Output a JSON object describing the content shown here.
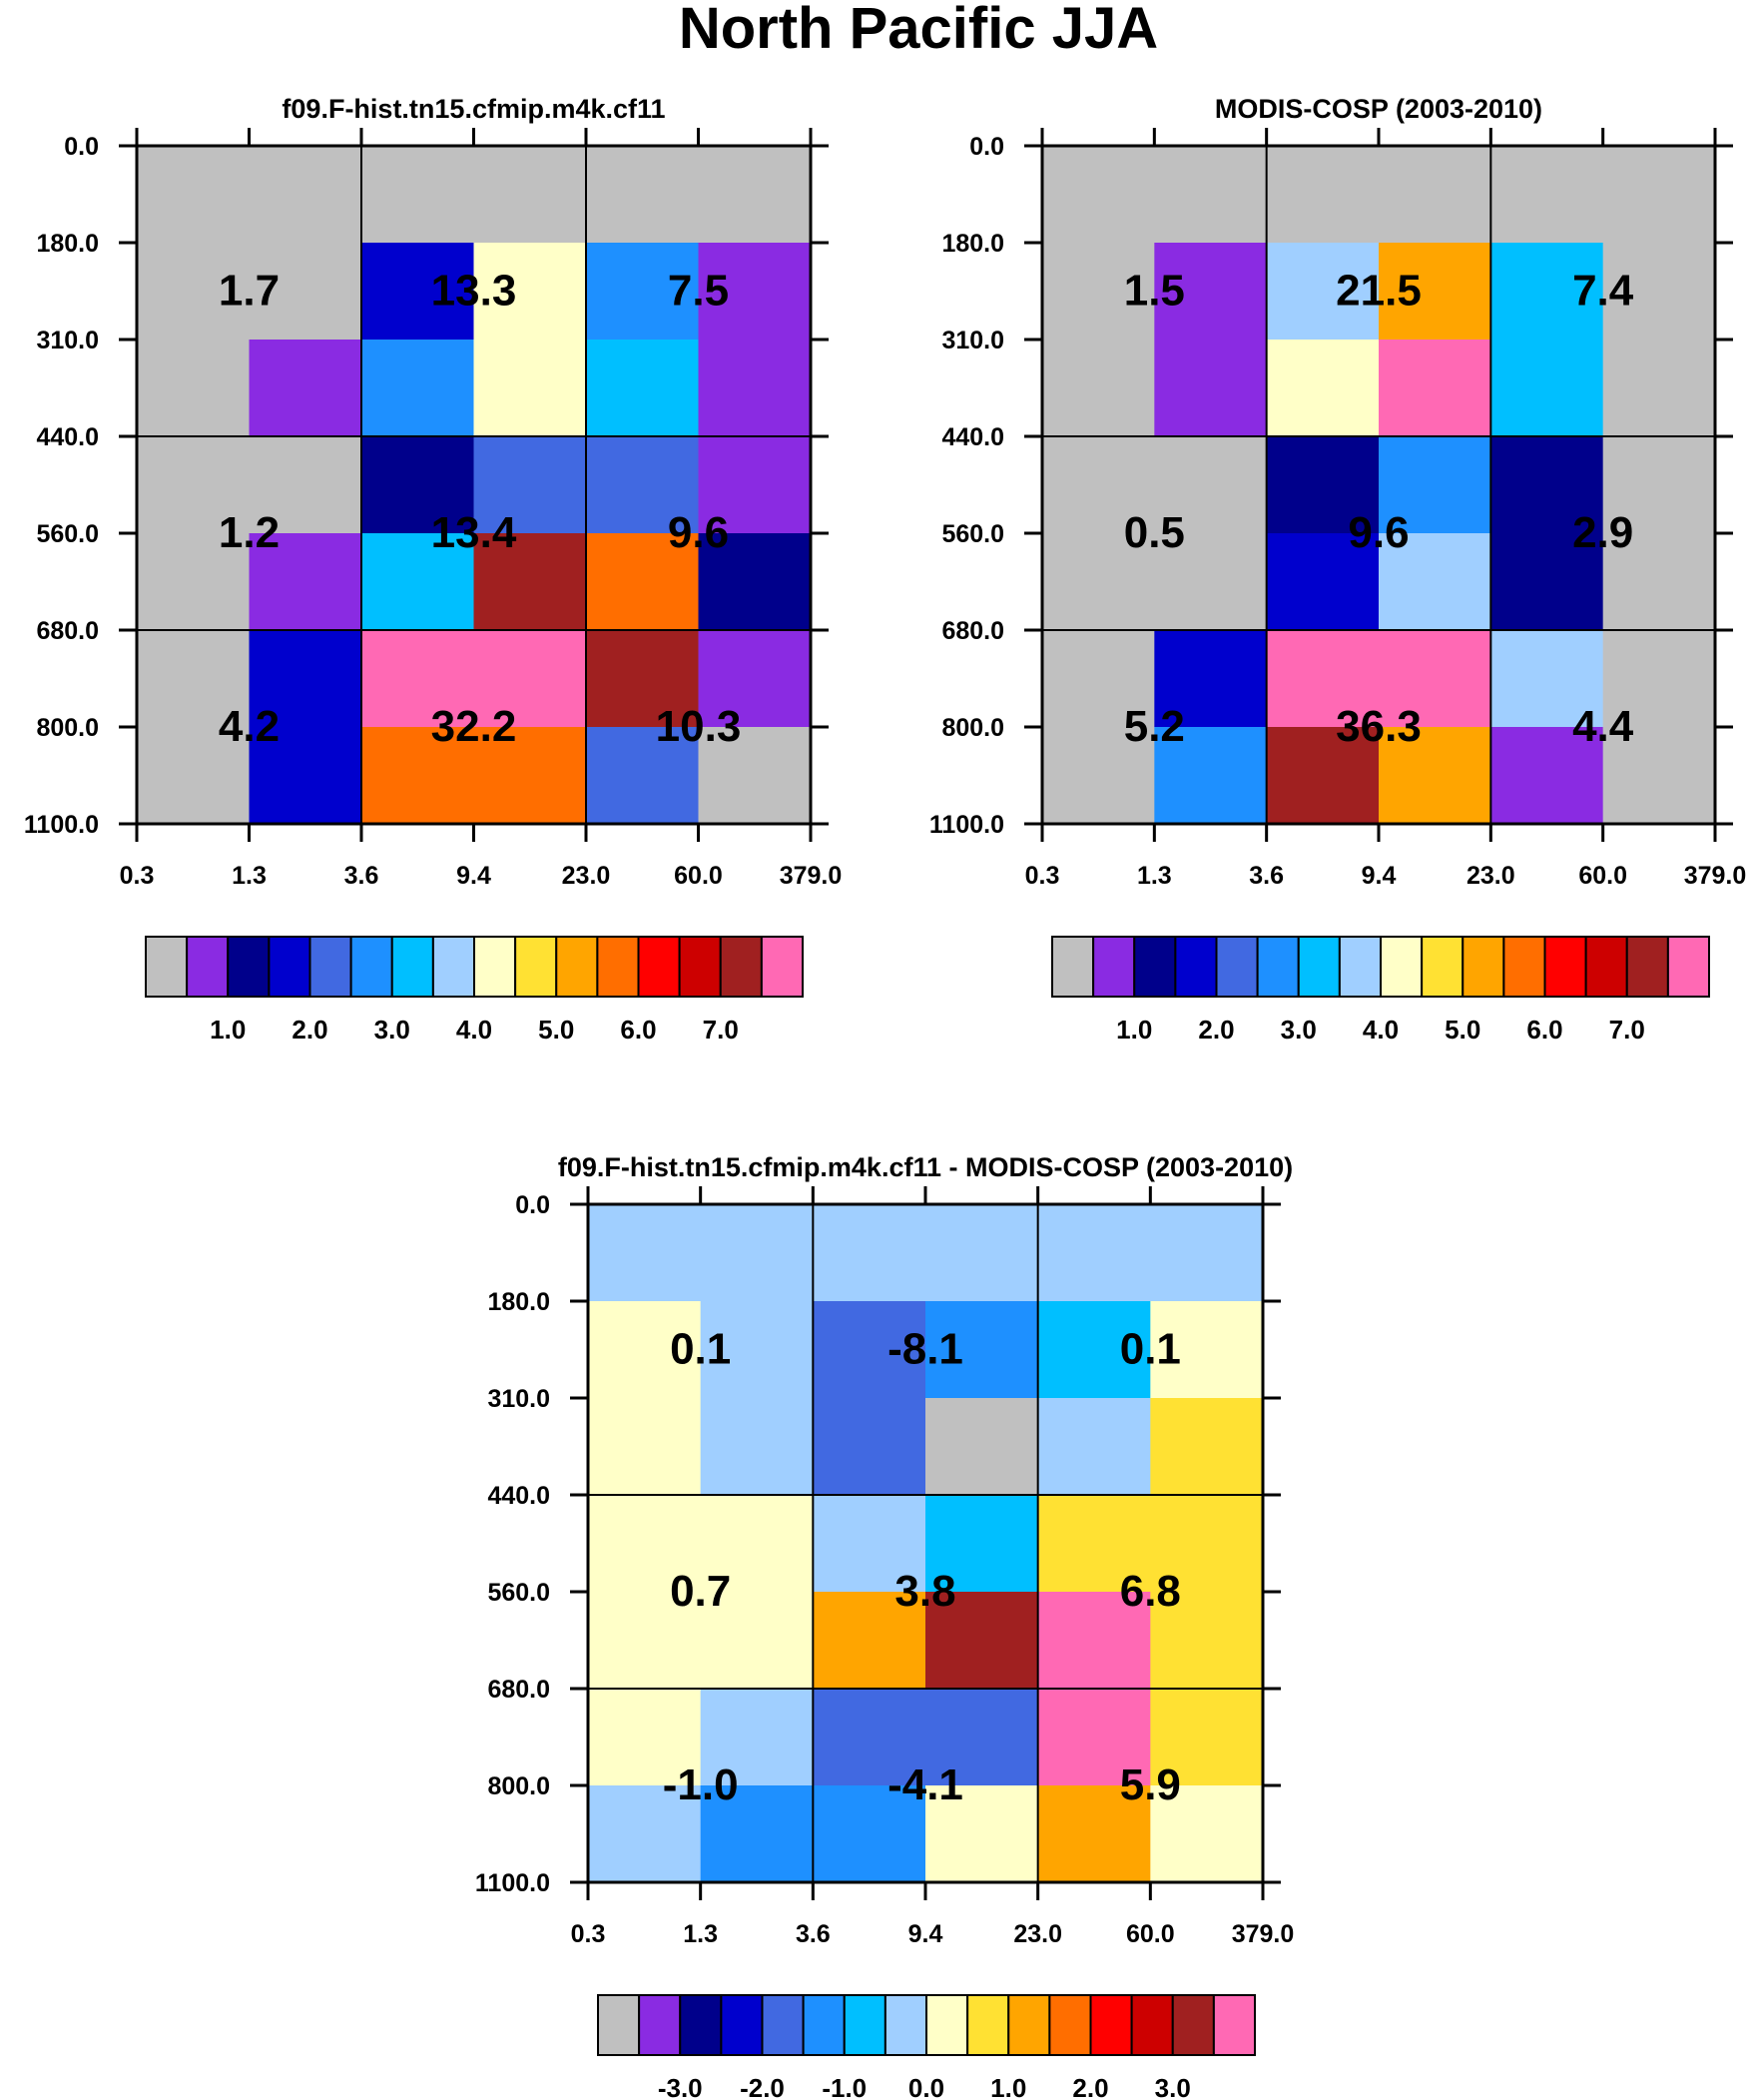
{
  "main_title": "North Pacific JJA",
  "colors": {
    "c0": "#c0c0c0",
    "c1": "#8a2be2",
    "c2": "#00008b",
    "c3": "#0000cd",
    "c4": "#4169e1",
    "c5": "#1e90ff",
    "c6": "#00bfff",
    "c7": "#a0cfff",
    "c8": "#ffffc8",
    "c9": "#ffe133",
    "c10": "#ffa500",
    "c11": "#ff6e00",
    "c12": "#ff0000",
    "c13": "#cd0000",
    "c14": "#a02020",
    "c15": "#ff69b4"
  },
  "chart_data": [
    {
      "type": "heatmap",
      "name": "model",
      "title": "f09.F-hist.tn15.cfmip.m4k.cf11",
      "x_ticks": [
        "0.3",
        "1.3",
        "3.6",
        "9.4",
        "23.0",
        "60.0",
        "379.0"
      ],
      "y_ticks": [
        "0.0",
        "180.0",
        "310.0",
        "440.0",
        "560.0",
        "680.0",
        "800.0",
        "1100.0"
      ],
      "cell_colors": [
        [
          "c0",
          "c0",
          "c0",
          "c0",
          "c0",
          "c0"
        ],
        [
          "c0",
          "c0",
          "c3",
          "c8",
          "c5",
          "c1"
        ],
        [
          "c0",
          "c1",
          "c5",
          "c8",
          "c6",
          "c1"
        ],
        [
          "c0",
          "c0",
          "c2",
          "c4",
          "c4",
          "c1"
        ],
        [
          "c0",
          "c1",
          "c6",
          "c14",
          "c11",
          "c2"
        ],
        [
          "c0",
          "c3",
          "c15",
          "c15",
          "c14",
          "c1"
        ],
        [
          "c0",
          "c3",
          "c11",
          "c11",
          "c4",
          "c0"
        ]
      ],
      "box_values": [
        [
          "1.7",
          "13.3",
          "7.5"
        ],
        [
          "1.2",
          "13.4",
          "9.6"
        ],
        [
          "4.2",
          "32.2",
          "10.3"
        ]
      ],
      "colorbar": {
        "colors": [
          "c0",
          "c1",
          "c2",
          "c3",
          "c4",
          "c5",
          "c6",
          "c7",
          "c8",
          "c9",
          "c10",
          "c11",
          "c12",
          "c13",
          "c14",
          "c15"
        ],
        "labels": [
          "1.0",
          "2.0",
          "3.0",
          "4.0",
          "5.0",
          "6.0",
          "7.0"
        ]
      }
    },
    {
      "type": "heatmap",
      "name": "obs",
      "title": "MODIS-COSP (2003-2010)",
      "x_ticks": [
        "0.3",
        "1.3",
        "3.6",
        "9.4",
        "23.0",
        "60.0",
        "379.0"
      ],
      "y_ticks": [
        "0.0",
        "180.0",
        "310.0",
        "440.0",
        "560.0",
        "680.0",
        "800.0",
        "1100.0"
      ],
      "cell_colors": [
        [
          "c0",
          "c0",
          "c0",
          "c0",
          "c0",
          "c0"
        ],
        [
          "c0",
          "c1",
          "c7",
          "c10",
          "c6",
          "c0"
        ],
        [
          "c0",
          "c1",
          "c8",
          "c15",
          "c6",
          "c0"
        ],
        [
          "c0",
          "c0",
          "c2",
          "c5",
          "c2",
          "c0"
        ],
        [
          "c0",
          "c0",
          "c3",
          "c7",
          "c2",
          "c0"
        ],
        [
          "c0",
          "c3",
          "c15",
          "c15",
          "c7",
          "c0"
        ],
        [
          "c0",
          "c5",
          "c14",
          "c10",
          "c1",
          "c0"
        ]
      ],
      "box_values": [
        [
          "1.5",
          "21.5",
          "7.4"
        ],
        [
          "0.5",
          "9.6",
          "2.9"
        ],
        [
          "5.2",
          "36.3",
          "4.4"
        ]
      ],
      "colorbar": {
        "colors": [
          "c0",
          "c1",
          "c2",
          "c3",
          "c4",
          "c5",
          "c6",
          "c7",
          "c8",
          "c9",
          "c10",
          "c11",
          "c12",
          "c13",
          "c14",
          "c15"
        ],
        "labels": [
          "1.0",
          "2.0",
          "3.0",
          "4.0",
          "5.0",
          "6.0",
          "7.0"
        ]
      }
    },
    {
      "type": "heatmap",
      "name": "diff",
      "title": "f09.F-hist.tn15.cfmip.m4k.cf11 - MODIS-COSP (2003-2010)",
      "x_ticks": [
        "0.3",
        "1.3",
        "3.6",
        "9.4",
        "23.0",
        "60.0",
        "379.0"
      ],
      "y_ticks": [
        "0.0",
        "180.0",
        "310.0",
        "440.0",
        "560.0",
        "680.0",
        "800.0",
        "1100.0"
      ],
      "cell_colors": [
        [
          "c7",
          "c7",
          "c7",
          "c7",
          "c7",
          "c7"
        ],
        [
          "c8",
          "c7",
          "c4",
          "c5",
          "c6",
          "c8"
        ],
        [
          "c8",
          "c7",
          "c4",
          "c0",
          "c7",
          "c9"
        ],
        [
          "c8",
          "c8",
          "c7",
          "c6",
          "c9",
          "c9"
        ],
        [
          "c8",
          "c8",
          "c10",
          "c14",
          "c15",
          "c9"
        ],
        [
          "c8",
          "c7",
          "c4",
          "c4",
          "c15",
          "c9"
        ],
        [
          "c7",
          "c5",
          "c5",
          "c8",
          "c10",
          "c8"
        ]
      ],
      "box_values": [
        [
          "0.1",
          "-8.1",
          "0.1"
        ],
        [
          "0.7",
          "3.8",
          "6.8"
        ],
        [
          "-1.0",
          "-4.1",
          "5.9"
        ]
      ],
      "colorbar": {
        "colors": [
          "c0",
          "c1",
          "c2",
          "c3",
          "c4",
          "c5",
          "c6",
          "c7",
          "c8",
          "c9",
          "c10",
          "c11",
          "c12",
          "c13",
          "c14",
          "c15"
        ],
        "labels": [
          "-3.0",
          "-2.0",
          "-1.0",
          "0.0",
          "1.0",
          "2.0",
          "3.0"
        ]
      }
    }
  ]
}
